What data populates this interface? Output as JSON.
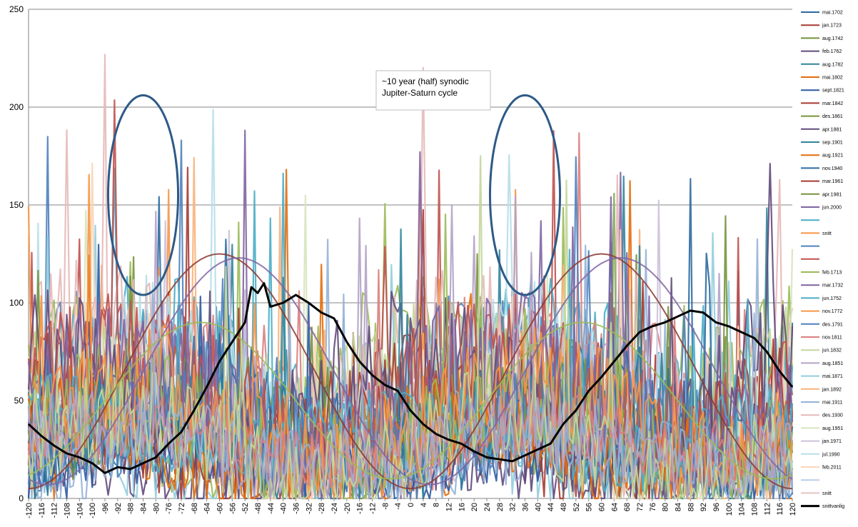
{
  "chart_data": {
    "type": "line",
    "x_range": [
      -120,
      120
    ],
    "x_tick_step": 4,
    "ylim": [
      0,
      250
    ],
    "y_ticks": [
      0,
      50,
      100,
      150,
      200,
      250
    ],
    "grid": "horizontal",
    "legend_position": "right",
    "annotation": {
      "line1": "~10 year (half) synodic",
      "line2": "Jupiter-Saturn cycle"
    },
    "highlight_ellipses": [
      {
        "cx": -84,
        "cy": 155,
        "rx": 11,
        "ry": 51,
        "color": "#2e5a87"
      },
      {
        "cx": 36,
        "cy": 155,
        "rx": 11,
        "ry": 51,
        "color": "#2e5a87"
      }
    ],
    "legend": [
      {
        "name": "mai.1702",
        "color": "#2c6aa0"
      },
      {
        "name": "jan.1723",
        "color": "#a63b32"
      },
      {
        "name": "aug.1742",
        "color": "#77933c"
      },
      {
        "name": "feb.1762",
        "color": "#604a7b"
      },
      {
        "name": "aug.1782",
        "color": "#31859c"
      },
      {
        "name": "mai.1802",
        "color": "#e46c0a"
      },
      {
        "name": "sept.1821",
        "color": "#2c5aa0"
      },
      {
        "name": "mar.1842",
        "color": "#a63b32"
      },
      {
        "name": "des.1861",
        "color": "#77933c"
      },
      {
        "name": "apr.1881",
        "color": "#604a7b"
      },
      {
        "name": "sep.1901",
        "color": "#31859c"
      },
      {
        "name": "aug.1921",
        "color": "#e46c0a"
      },
      {
        "name": "nov.1940",
        "color": "#2c6aa0"
      },
      {
        "name": "mar.1961",
        "color": "#a63b32"
      },
      {
        "name": "apr.1981",
        "color": "#77933c"
      },
      {
        "name": "jun.2000",
        "color": "#8064a2"
      },
      {
        "name": "",
        "color": "#4bacc6"
      },
      {
        "name": "snitt",
        "color": "#f79646"
      },
      {
        "name": "",
        "color": "#4f81bd"
      },
      {
        "name": "",
        "color": "#c0504d"
      },
      {
        "name": "feb.1713",
        "color": "#9bbb59"
      },
      {
        "name": "mar.1732",
        "color": "#8064a2"
      },
      {
        "name": "jun.1752",
        "color": "#4bacc6"
      },
      {
        "name": "nov.1772",
        "color": "#f79646"
      },
      {
        "name": "des.1791",
        "color": "#4f81bd"
      },
      {
        "name": "nov.1811",
        "color": "#d9807e"
      },
      {
        "name": "jun.1832",
        "color": "#c3d69b"
      },
      {
        "name": "aug.1851",
        "color": "#b3a2c7"
      },
      {
        "name": "mai.1871",
        "color": "#93cddd"
      },
      {
        "name": "jan.1892",
        "color": "#fab27a"
      },
      {
        "name": "mai.1911",
        "color": "#95b3d7"
      },
      {
        "name": "des.1930",
        "color": "#e6b9b8"
      },
      {
        "name": "aug.1951",
        "color": "#d7e4bd"
      },
      {
        "name": "jan.1971",
        "color": "#ccc1da"
      },
      {
        "name": "jul.1990",
        "color": "#b7dee8"
      },
      {
        "name": "feb.2011",
        "color": "#fcd5b5"
      },
      {
        "name": "",
        "color": "#b9cde5"
      },
      {
        "name": "snitt",
        "color": "#e6c3c2"
      },
      {
        "name": "snittvanlig",
        "color": "#000000"
      }
    ],
    "series_colors": [
      "#2c6aa0",
      "#a63b32",
      "#77933c",
      "#604a7b",
      "#31859c",
      "#e46c0a",
      "#4f81bd",
      "#c0504d",
      "#9bbb59",
      "#8064a2",
      "#4bacc6",
      "#f79646",
      "#95b3d7",
      "#d9807e",
      "#c3d69b",
      "#b3a2c7",
      "#93cddd",
      "#fab27a",
      "#ccc1da",
      "#b7dee8",
      "#fcd5b5",
      "#e6b9b8",
      "#d7e4bd",
      "#2c5aa0"
    ],
    "background_series_count": 40,
    "smooth_curves": [
      {
        "color": "#8b3a30",
        "base": 65,
        "amp": 60,
        "phase": 0
      },
      {
        "color": "#8064a2",
        "base": 65,
        "amp": 58,
        "phase": 6
      },
      {
        "color": "#9bbb59",
        "base": 50,
        "amp": 40,
        "phase": -6
      }
    ],
    "average_series": {
      "name": "snittvanlig",
      "color": "#000000",
      "points": [
        [
          -120,
          38
        ],
        [
          -116,
          32
        ],
        [
          -112,
          27
        ],
        [
          -108,
          23
        ],
        [
          -104,
          21
        ],
        [
          -100,
          18
        ],
        [
          -96,
          13
        ],
        [
          -92,
          16
        ],
        [
          -88,
          15
        ],
        [
          -84,
          18
        ],
        [
          -80,
          21
        ],
        [
          -76,
          28
        ],
        [
          -72,
          34
        ],
        [
          -68,
          45
        ],
        [
          -64,
          57
        ],
        [
          -60,
          70
        ],
        [
          -56,
          80
        ],
        [
          -52,
          90
        ],
        [
          -50,
          108
        ],
        [
          -48,
          105
        ],
        [
          -46,
          110
        ],
        [
          -44,
          98
        ],
        [
          -40,
          100
        ],
        [
          -36,
          104
        ],
        [
          -32,
          100
        ],
        [
          -28,
          95
        ],
        [
          -24,
          92
        ],
        [
          -20,
          80
        ],
        [
          -16,
          70
        ],
        [
          -12,
          63
        ],
        [
          -8,
          58
        ],
        [
          -4,
          55
        ],
        [
          0,
          45
        ],
        [
          4,
          38
        ],
        [
          8,
          33
        ],
        [
          12,
          30
        ],
        [
          16,
          28
        ],
        [
          20,
          24
        ],
        [
          24,
          21
        ],
        [
          28,
          20
        ],
        [
          32,
          19
        ],
        [
          36,
          22
        ],
        [
          40,
          25
        ],
        [
          44,
          28
        ],
        [
          48,
          38
        ],
        [
          52,
          45
        ],
        [
          56,
          55
        ],
        [
          60,
          62
        ],
        [
          64,
          70
        ],
        [
          68,
          78
        ],
        [
          72,
          85
        ],
        [
          76,
          88
        ],
        [
          80,
          90
        ],
        [
          84,
          93
        ],
        [
          88,
          96
        ],
        [
          92,
          95
        ],
        [
          96,
          90
        ],
        [
          100,
          88
        ],
        [
          104,
          85
        ],
        [
          108,
          82
        ],
        [
          112,
          75
        ],
        [
          116,
          65
        ],
        [
          120,
          57
        ]
      ]
    }
  }
}
